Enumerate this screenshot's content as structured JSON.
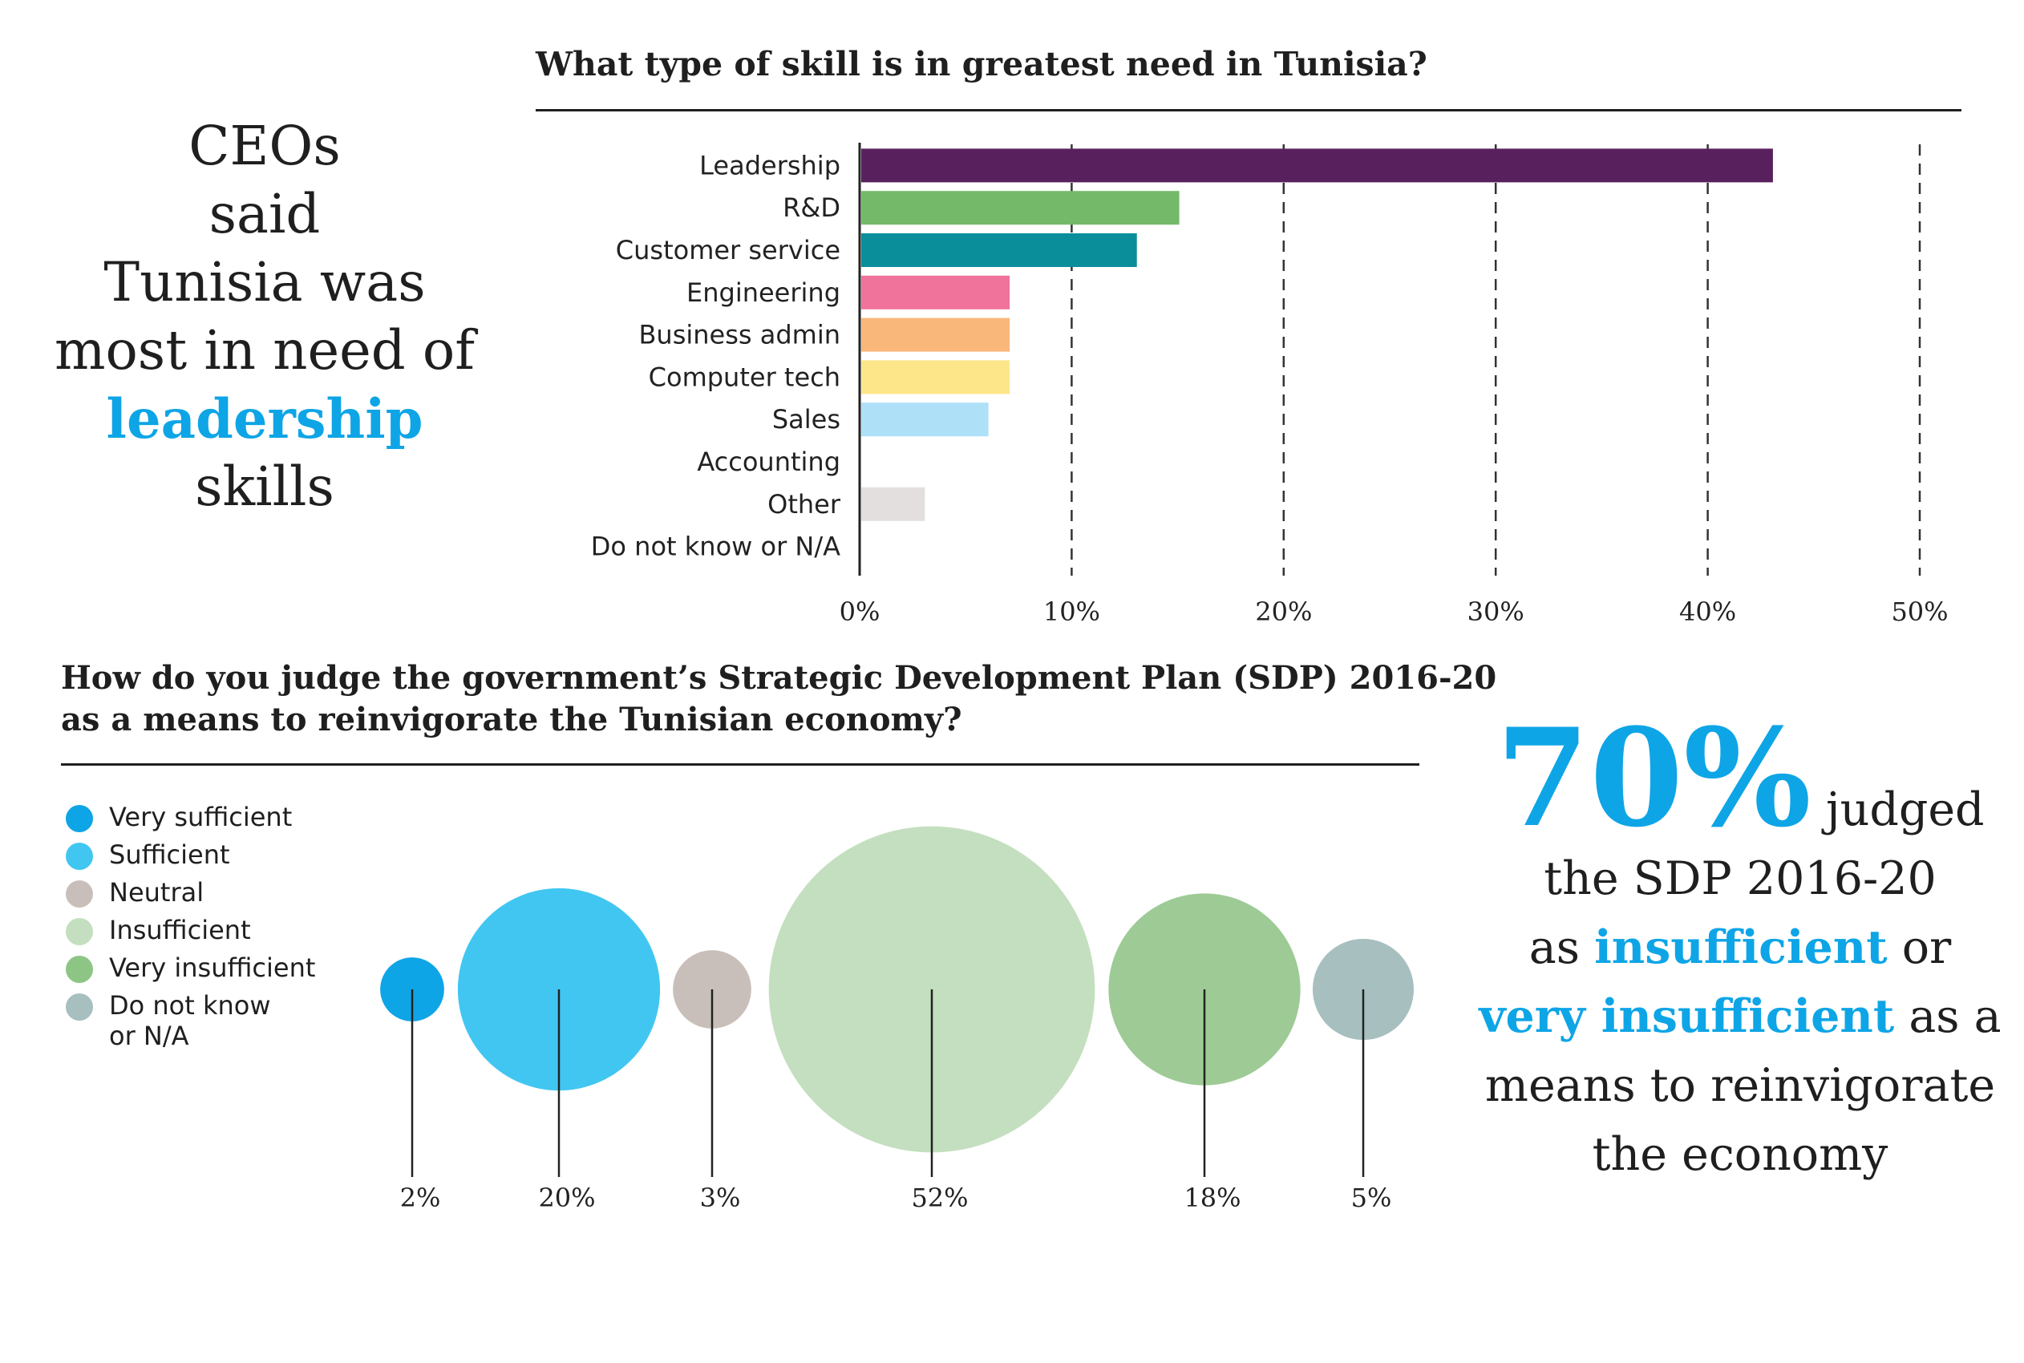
{
  "callout_top": {
    "lines": [
      "CEOs",
      "said",
      "Tunisia was",
      "most in need of"
    ],
    "highlight": "leadership",
    "last": "skills"
  },
  "chart_data": [
    {
      "type": "bar",
      "orientation": "horizontal",
      "title": "What type of skill is in greatest need in Tunisia?",
      "categories": [
        "Leadership",
        "R&D",
        "Customer service",
        "Engineering",
        "Business admin",
        "Computer tech",
        "Sales",
        "Accounting",
        "Other",
        "Do not know or N/A"
      ],
      "values": [
        43,
        15,
        13,
        7,
        7,
        7,
        6,
        0,
        3,
        0
      ],
      "colors": [
        "#59205e",
        "#74b96a",
        "#0a8e9a",
        "#ef739a",
        "#f9b77a",
        "#fde68a",
        "#aee0f8",
        "#ffffff",
        "#e3dfdf",
        "#ffffff"
      ],
      "xlim": [
        0,
        50
      ],
      "ticks": [
        0,
        10,
        20,
        30,
        40,
        50
      ],
      "tick_labels": [
        "0%",
        "10%",
        "20%",
        "30%",
        "40%",
        "50%"
      ],
      "grid": "dashed vertical"
    },
    {
      "type": "bubble",
      "title": "How do you judge the government’s Strategic Development Plan (SDP) 2016-20 as a means to reinvigorate the Tunisian economy?",
      "categories": [
        "Very sufficient",
        "Sufficient",
        "Neutral",
        "Insufficient",
        "Very insufficient",
        "Do not know or N/A"
      ],
      "values": [
        2,
        20,
        3,
        52,
        18,
        5
      ],
      "labels": [
        "2%",
        "20%",
        "3%",
        "52%",
        "18%",
        "5%"
      ],
      "colors": [
        "#0ea5e6",
        "#41c6f2",
        "#c8bfbb",
        "#c4dfbf",
        "#9dca95",
        "#a7bfbf"
      ]
    }
  ],
  "question_bubble": {
    "line1": "How do you judge the government’s Strategic Development Plan (SDP) 2016-20",
    "line2": "as a means to reinvigorate the Tunisian economy?"
  },
  "legend": {
    "items": [
      {
        "label": "Very sufficient",
        "color": "#0ea5e6"
      },
      {
        "label": "Sufficient",
        "color": "#41c6f2"
      },
      {
        "label": "Neutral",
        "color": "#c8bfbb"
      },
      {
        "label": "Insufficient",
        "color": "#c4dfbf"
      },
      {
        "label": "Very insufficient",
        "color": "#8cc584"
      },
      {
        "label_line1": "Do not know",
        "label_line2": "or N/A",
        "color": "#a7bfbf"
      }
    ]
  },
  "callout_bottom": {
    "big": "70%",
    "after_big": "judged",
    "line2": "the SDP 2016-20",
    "line3_pre": "as",
    "line3_hl": "insufficient",
    "line3_post": "or",
    "line4_hl": "very insufficient",
    "line4_post": "as a",
    "line5": "means to reinvigorate",
    "line6": "the economy"
  }
}
